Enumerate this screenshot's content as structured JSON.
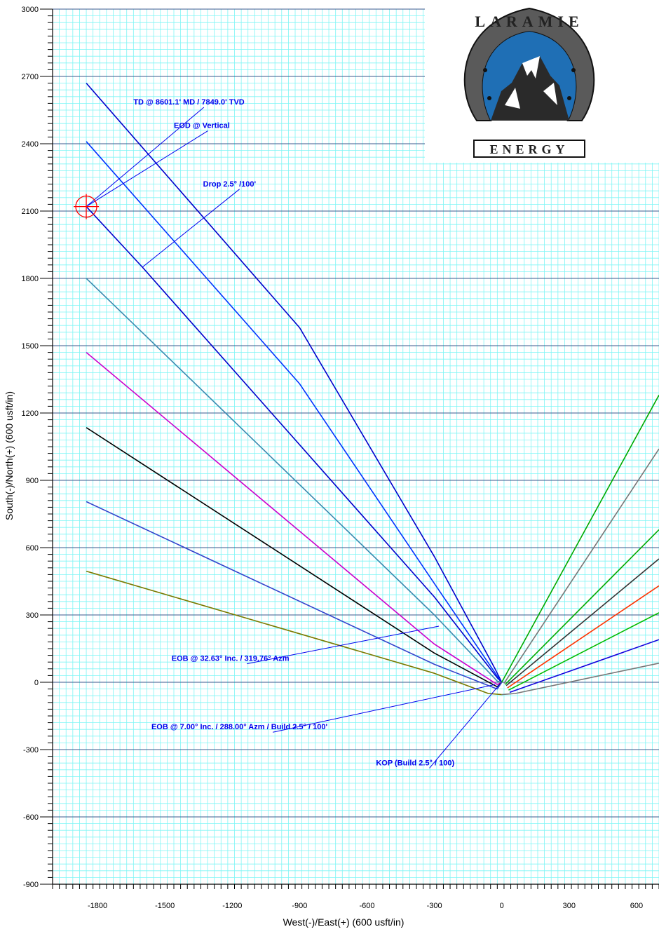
{
  "chart_data": {
    "type": "line",
    "xlabel": "West(-)/East(+) (600 usft/in)",
    "ylabel": "South(-)/North(+) (600 usft/in)",
    "xlim": [
      -2000,
      700
    ],
    "ylim": [
      -900,
      3000
    ],
    "x_ticks": [
      -1800,
      -1500,
      -1200,
      -900,
      -600,
      -300,
      0,
      300,
      600
    ],
    "y_ticks": [
      -900,
      -600,
      -300,
      0,
      300,
      600,
      900,
      1200,
      1500,
      1800,
      2100,
      2400,
      2700,
      3000
    ],
    "grid": true,
    "colors": {
      "minor_grid": "#7ff5f5",
      "major_grid": "#3a5a8c",
      "annotation": "#0000ee",
      "target": "#ff0000"
    },
    "series": [
      {
        "color": "#0000cc",
        "points": [
          [
            0,
            0
          ],
          [
            -30,
            60
          ],
          [
            -300,
            560
          ],
          [
            -900,
            1580
          ],
          [
            -1850,
            2670
          ]
        ]
      },
      {
        "color": "#0033ff",
        "points": [
          [
            0,
            0
          ],
          [
            -25,
            35
          ],
          [
            -300,
            440
          ],
          [
            -900,
            1330
          ],
          [
            -1850,
            2410
          ]
        ]
      },
      {
        "color": "#0000cc",
        "points": [
          [
            0,
            0
          ],
          [
            -20,
            20
          ],
          [
            -300,
            380
          ],
          [
            -1600,
            1850
          ],
          [
            -1850,
            2120
          ]
        ]
      },
      {
        "color": "#3a8ab0",
        "points": [
          [
            0,
            0
          ],
          [
            -20,
            5
          ],
          [
            -300,
            300
          ],
          [
            -1850,
            1800
          ]
        ]
      },
      {
        "color": "#cc00cc",
        "points": [
          [
            0,
            0
          ],
          [
            -20,
            -10
          ],
          [
            -300,
            170
          ],
          [
            -1850,
            1470
          ]
        ]
      },
      {
        "color": "#000000",
        "points": [
          [
            0,
            0
          ],
          [
            -20,
            -20
          ],
          [
            -300,
            130
          ],
          [
            -1850,
            1135
          ]
        ]
      },
      {
        "color": "#3344cc",
        "points": [
          [
            0,
            0
          ],
          [
            -20,
            -30
          ],
          [
            -300,
            80
          ],
          [
            -1850,
            805
          ]
        ]
      },
      {
        "color": "#7a7a00",
        "points": [
          [
            0,
            -55
          ],
          [
            -60,
            -50
          ],
          [
            -300,
            40
          ],
          [
            -1850,
            495
          ]
        ]
      },
      {
        "color": "#00aa00",
        "points": [
          [
            0,
            0
          ],
          [
            700,
            1280
          ]
        ]
      },
      {
        "color": "#777777",
        "points": [
          [
            10,
            -5
          ],
          [
            700,
            1040
          ]
        ]
      },
      {
        "color": "#00aa00",
        "points": [
          [
            15,
            -10
          ],
          [
            700,
            680
          ]
        ]
      },
      {
        "color": "#333333",
        "points": [
          [
            20,
            -15
          ],
          [
            700,
            550
          ]
        ]
      },
      {
        "color": "#ff3300",
        "points": [
          [
            25,
            -25
          ],
          [
            700,
            430
          ]
        ]
      },
      {
        "color": "#00bb00",
        "points": [
          [
            30,
            -35
          ],
          [
            700,
            310
          ]
        ]
      },
      {
        "color": "#1100dd",
        "points": [
          [
            35,
            -45
          ],
          [
            700,
            190
          ]
        ]
      },
      {
        "color": "#777777",
        "points": [
          [
            0,
            -55
          ],
          [
            60,
            -50
          ],
          [
            700,
            85
          ]
        ]
      }
    ],
    "target": {
      "x": -1850,
      "y": 2120
    },
    "annotations": [
      {
        "text": "TD @ 8601.1' MD / 7849.0' TVD",
        "text_at": [
          -1640,
          2575
        ],
        "point": [
          -1850,
          2120
        ]
      },
      {
        "text": "EOD @ Vertical",
        "text_at": [
          -1460,
          2470
        ],
        "point": [
          -1850,
          2120
        ]
      },
      {
        "text": "Drop 2.5° /100'",
        "text_at": [
          -1330,
          2210
        ],
        "point": [
          -1600,
          1850
        ]
      },
      {
        "text": "EOB @ 32.63° Inc. / 319.76° Azm",
        "text_at": [
          -1470,
          95
        ],
        "point": [
          -280,
          250
        ]
      },
      {
        "text": "EOB @ 7.00° Inc. / 288.00° Azm / Build 2.5° / 100'",
        "text_at": [
          -1560,
          -210
        ],
        "point": [
          -30,
          -10
        ]
      },
      {
        "text": "KOP (Build 2.5° / 100)",
        "text_at": [
          -560,
          -370
        ],
        "point": [
          -10,
          -10
        ]
      }
    ]
  },
  "logo": {
    "top_text": "LARAMIE",
    "bottom_text": "ENERGY",
    "colors": {
      "sky": "#1f6fb5",
      "mountain": "#2a2a2a",
      "snow": "#ffffff",
      "horseshoe": "#5a5a5a"
    }
  }
}
